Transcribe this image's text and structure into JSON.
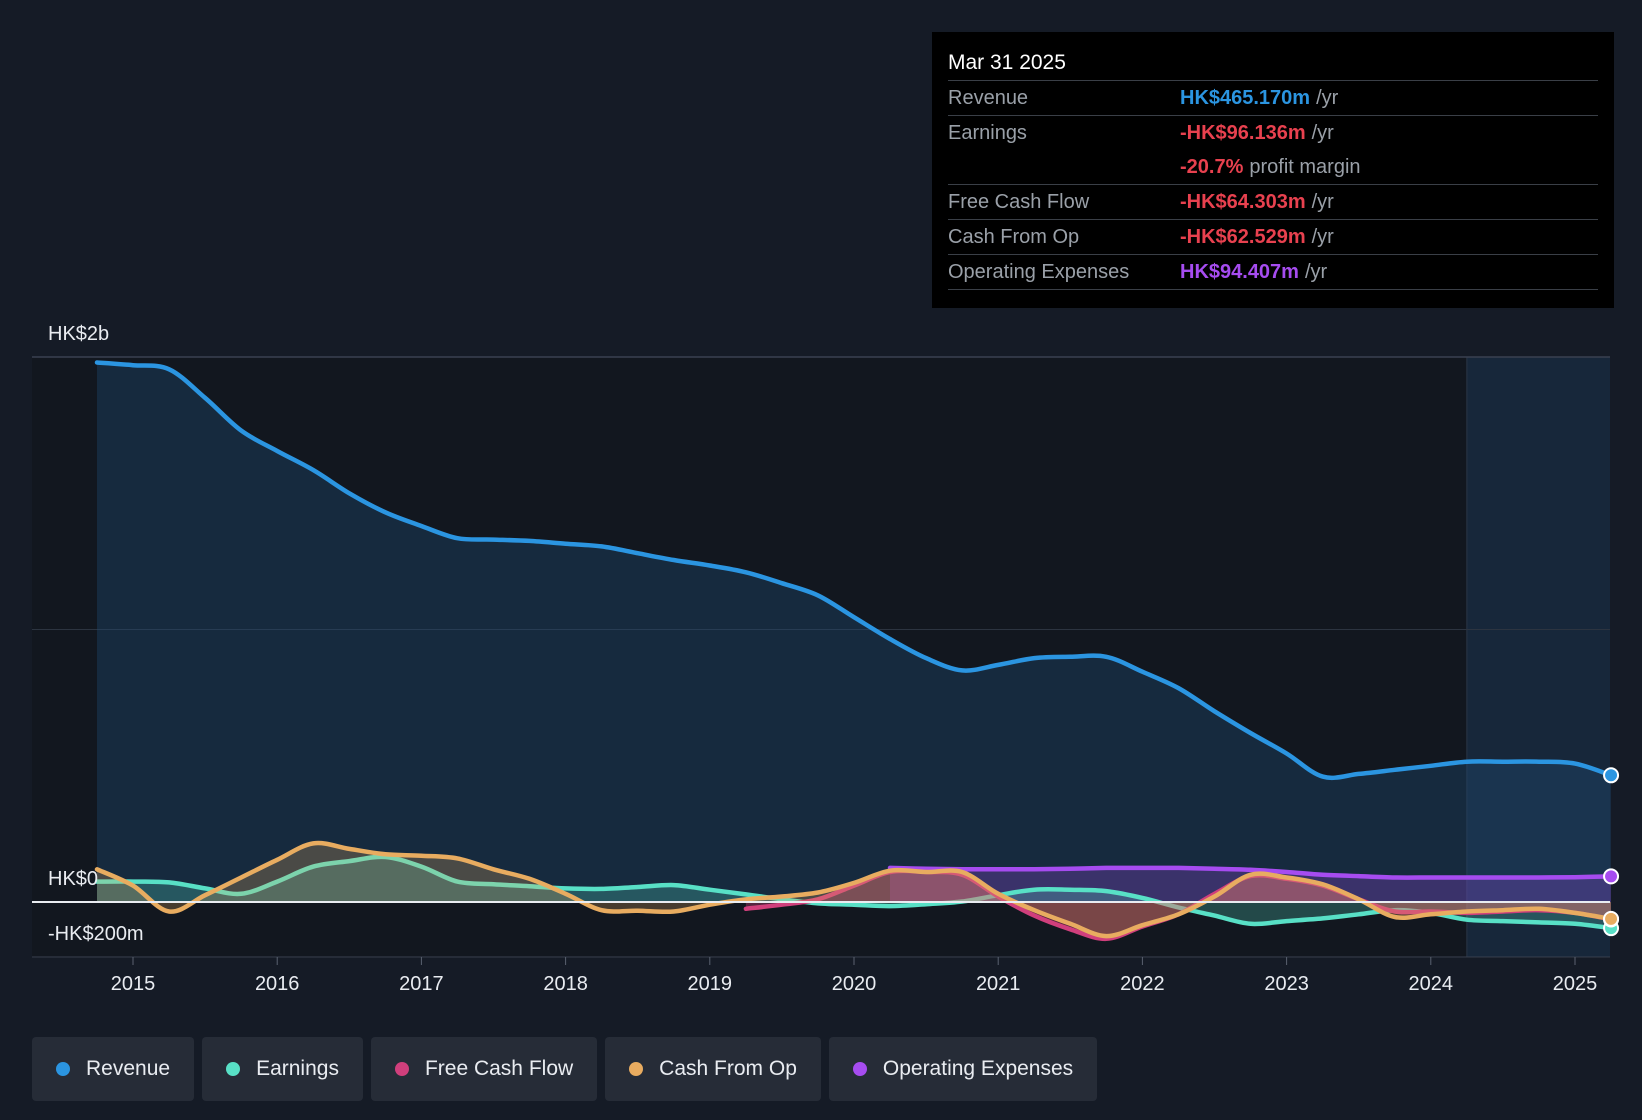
{
  "colors": {
    "revenue": "#2b95e1",
    "earnings": "#58e0c6",
    "free_cash_flow": "#d03f7c",
    "cash_from_op": "#e8ac60",
    "operating_expenses": "#a64cf0",
    "negative": "#e8414f",
    "background": "#151b26"
  },
  "tooltip": {
    "date": "Mar 31 2025",
    "rows": [
      {
        "label": "Revenue",
        "value": "HK$465.170m",
        "unit": "/yr",
        "color": "#2b95e1"
      },
      {
        "label": "Earnings",
        "value": "-HK$96.136m",
        "unit": "/yr",
        "color": "#e8414f"
      },
      {
        "label": "",
        "value": "-20.7%",
        "unit": "profit margin",
        "color": "#e8414f"
      },
      {
        "label": "Free Cash Flow",
        "value": "-HK$64.303m",
        "unit": "/yr",
        "color": "#e8414f"
      },
      {
        "label": "Cash From Op",
        "value": "-HK$62.529m",
        "unit": "/yr",
        "color": "#e8414f"
      },
      {
        "label": "Operating Expenses",
        "value": "HK$94.407m",
        "unit": "/yr",
        "color": "#a64cf0"
      }
    ]
  },
  "legend": [
    {
      "label": "Revenue",
      "color": "#2b95e1"
    },
    {
      "label": "Earnings",
      "color": "#58e0c6"
    },
    {
      "label": "Free Cash Flow",
      "color": "#d03f7c"
    },
    {
      "label": "Cash From Op",
      "color": "#e8ac60"
    },
    {
      "label": "Operating Expenses",
      "color": "#a64cf0"
    }
  ],
  "chart_data": {
    "type": "line",
    "y_axis_labels": [
      "HK$2b",
      "HK$0",
      "-HK$200m"
    ],
    "ylim": [
      -200,
      2000
    ],
    "xlim": [
      2014.75,
      2025.25
    ],
    "x_ticks": [
      "2015",
      "2016",
      "2017",
      "2018",
      "2019",
      "2020",
      "2021",
      "2022",
      "2023",
      "2024",
      "2025"
    ],
    "x_tick_values": [
      2015,
      2016,
      2017,
      2018,
      2019,
      2020,
      2021,
      2022,
      2023,
      2024,
      2025
    ],
    "grid": true,
    "units": "HK$m",
    "series": [
      {
        "name": "Revenue",
        "x": [
          2014.75,
          2015.0,
          2015.25,
          2015.5,
          2015.75,
          2016.0,
          2016.25,
          2016.5,
          2016.75,
          2017.0,
          2017.25,
          2017.5,
          2017.75,
          2018.0,
          2018.25,
          2018.5,
          2018.75,
          2019.0,
          2019.25,
          2019.5,
          2019.75,
          2020.0,
          2020.25,
          2020.5,
          2020.75,
          2021.0,
          2021.25,
          2021.5,
          2021.75,
          2022.0,
          2022.25,
          2022.5,
          2022.75,
          2023.0,
          2023.25,
          2023.5,
          2023.75,
          2024.0,
          2024.25,
          2024.5,
          2024.75,
          2025.0,
          2025.25
        ],
        "values": [
          1980,
          1970,
          1955,
          1850,
          1730,
          1655,
          1585,
          1500,
          1430,
          1380,
          1335,
          1330,
          1325,
          1315,
          1305,
          1280,
          1255,
          1235,
          1210,
          1170,
          1125,
          1045,
          965,
          895,
          850,
          870,
          895,
          900,
          900,
          845,
          785,
          700,
          620,
          545,
          460,
          470,
          485,
          500,
          515,
          515,
          515,
          508,
          465
        ]
      },
      {
        "name": "Earnings",
        "x": [
          2014.75,
          2015.0,
          2015.25,
          2015.5,
          2015.75,
          2016.0,
          2016.25,
          2016.5,
          2016.75,
          2017.0,
          2017.25,
          2017.5,
          2017.75,
          2018.0,
          2018.25,
          2018.5,
          2018.75,
          2019.0,
          2019.25,
          2019.5,
          2019.75,
          2020.0,
          2020.25,
          2020.5,
          2020.75,
          2021.0,
          2021.25,
          2021.5,
          2021.75,
          2022.0,
          2022.25,
          2022.5,
          2022.75,
          2023.0,
          2023.25,
          2023.5,
          2023.75,
          2024.0,
          2024.25,
          2024.5,
          2024.75,
          2025.0,
          2025.25
        ],
        "values": [
          75,
          75,
          72,
          50,
          30,
          75,
          130,
          150,
          165,
          130,
          75,
          65,
          58,
          50,
          48,
          55,
          62,
          45,
          28,
          10,
          -5,
          -10,
          -15,
          -8,
          2,
          25,
          45,
          45,
          40,
          15,
          -20,
          -50,
          -80,
          -70,
          -60,
          -45,
          -30,
          -40,
          -65,
          -70,
          -75,
          -80,
          -96
        ]
      },
      {
        "name": "Free Cash Flow",
        "x": [
          2019.25,
          2019.5,
          2019.75,
          2020.0,
          2020.25,
          2020.5,
          2020.75,
          2021.0,
          2021.25,
          2021.5,
          2021.75,
          2022.0,
          2022.25,
          2022.5,
          2022.75,
          2023.0,
          2023.25,
          2023.5,
          2023.75,
          2024.0,
          2024.25,
          2024.5,
          2024.75,
          2025.0,
          2025.25
        ],
        "values": [
          -25,
          -10,
          10,
          60,
          110,
          110,
          100,
          20,
          -50,
          -100,
          -135,
          -90,
          -45,
          30,
          95,
          85,
          60,
          10,
          -35,
          -35,
          -40,
          -35,
          -30,
          -40,
          -64
        ]
      },
      {
        "name": "Cash From Op",
        "x": [
          2014.75,
          2015.0,
          2015.25,
          2015.5,
          2015.75,
          2016.0,
          2016.25,
          2016.5,
          2016.75,
          2017.0,
          2017.25,
          2017.5,
          2017.75,
          2018.0,
          2018.25,
          2018.5,
          2018.75,
          2019.0,
          2019.25,
          2019.5,
          2019.75,
          2020.0,
          2020.25,
          2020.5,
          2020.75,
          2021.0,
          2021.25,
          2021.5,
          2021.75,
          2022.0,
          2022.25,
          2022.5,
          2022.75,
          2023.0,
          2023.25,
          2023.5,
          2023.75,
          2024.0,
          2024.25,
          2024.5,
          2024.75,
          2025.0,
          2025.25
        ],
        "values": [
          120,
          60,
          -35,
          25,
          90,
          155,
          215,
          195,
          175,
          170,
          160,
          120,
          85,
          30,
          -30,
          -32,
          -35,
          -10,
          10,
          20,
          35,
          70,
          115,
          110,
          110,
          30,
          -30,
          -80,
          -125,
          -85,
          -45,
          20,
          100,
          90,
          65,
          10,
          -55,
          -45,
          -35,
          -30,
          -25,
          -40,
          -62
        ]
      },
      {
        "name": "Operating Expenses",
        "x": [
          2020.25,
          2020.5,
          2020.75,
          2021.0,
          2021.25,
          2021.5,
          2021.75,
          2022.0,
          2022.25,
          2022.5,
          2022.75,
          2023.0,
          2023.25,
          2023.5,
          2023.75,
          2024.0,
          2024.25,
          2024.5,
          2024.75,
          2025.0,
          2025.25
        ],
        "values": [
          125,
          122,
          120,
          120,
          120,
          122,
          125,
          125,
          125,
          122,
          118,
          110,
          100,
          95,
          90,
          90,
          90,
          90,
          90,
          91,
          94
        ]
      }
    ],
    "highlight_period_start": 2024.25
  }
}
